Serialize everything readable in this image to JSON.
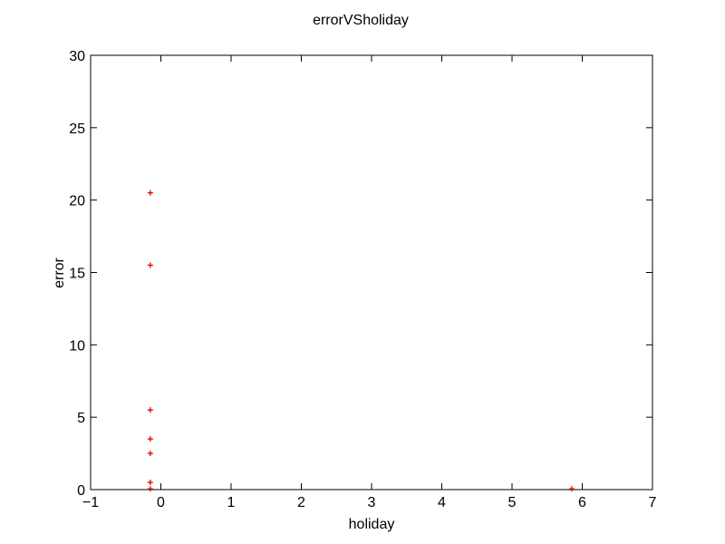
{
  "chart_data": {
    "type": "scatter",
    "title": "errorVSholiday",
    "xlabel": "holiday",
    "ylabel": "error",
    "xlim": [
      -1,
      7
    ],
    "ylim": [
      0,
      30
    ],
    "xticks": [
      -1,
      0,
      1,
      2,
      3,
      4,
      5,
      6,
      7
    ],
    "yticks": [
      0,
      5,
      10,
      15,
      20,
      25,
      30
    ],
    "xtick_labels": [
      "−1",
      "0",
      "1",
      "2",
      "3",
      "4",
      "5",
      "6",
      "7"
    ],
    "ytick_labels": [
      "0",
      "5",
      "10",
      "15",
      "20",
      "25",
      "30"
    ],
    "grid": false,
    "marker": "+",
    "marker_color": "#e00000",
    "series": [
      {
        "points": [
          {
            "x": -0.15,
            "y": 20.5
          },
          {
            "x": -0.15,
            "y": 15.5
          },
          {
            "x": -0.15,
            "y": 5.5
          },
          {
            "x": -0.15,
            "y": 3.5
          },
          {
            "x": -0.15,
            "y": 2.5
          },
          {
            "x": -0.15,
            "y": 0.5
          },
          {
            "x": -0.15,
            "y": 0.05
          },
          {
            "x": 5.85,
            "y": 0.05
          }
        ]
      }
    ]
  }
}
